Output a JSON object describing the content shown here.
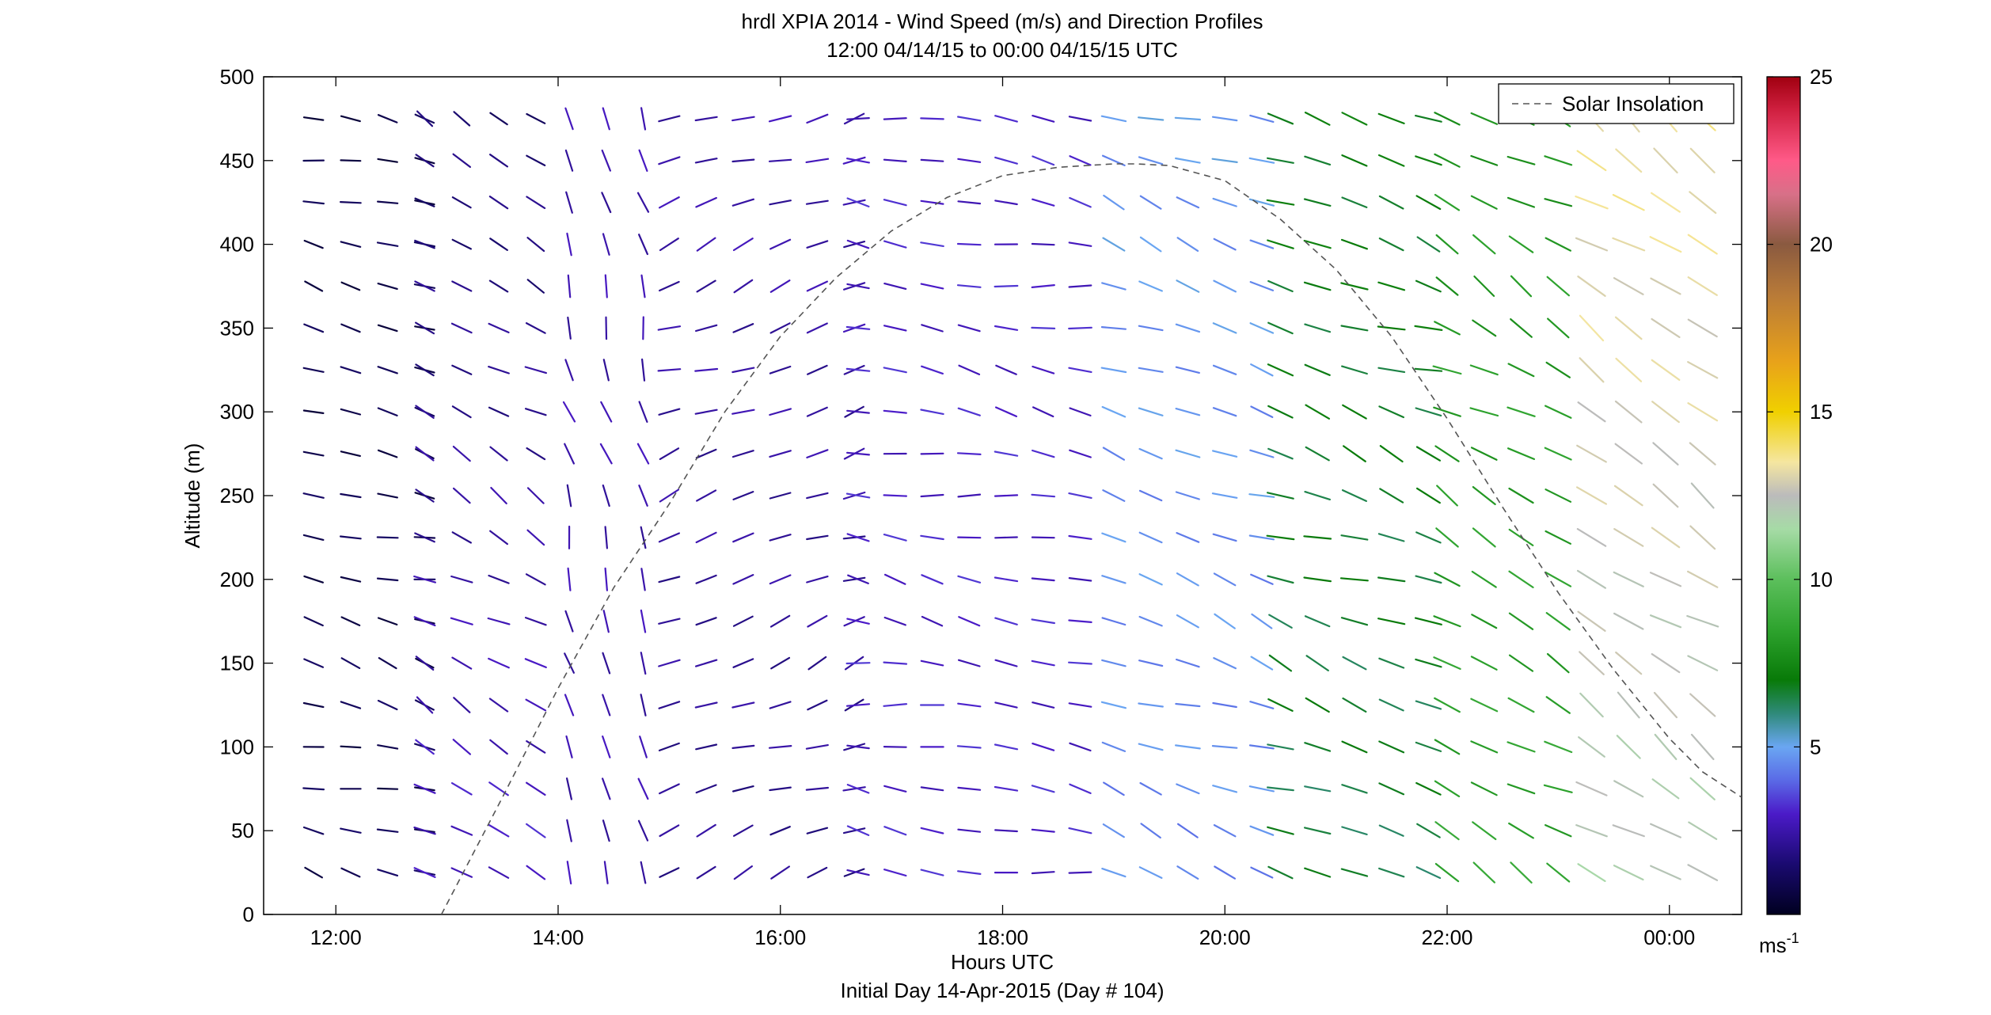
{
  "chart_data": {
    "type": "wind-barb-profile",
    "title": "hrdl XPIA 2014 - Wind Speed (m/s) and Direction Profiles",
    "subtitle": "12:00 04/14/15 to 00:00 04/15/15  UTC",
    "xlabel": "Hours UTC",
    "xlabel2": "Initial Day 14-Apr-2015 (Day # 104)",
    "ylabel": "Altitude (m)",
    "xlim": [
      11.35,
      24.65
    ],
    "ylim": [
      0,
      500
    ],
    "x_ticks": [
      {
        "value": 12,
        "label": "12:00"
      },
      {
        "value": 14,
        "label": "14:00"
      },
      {
        "value": 16,
        "label": "16:00"
      },
      {
        "value": 18,
        "label": "18:00"
      },
      {
        "value": 20,
        "label": "20:00"
      },
      {
        "value": 22,
        "label": "22:00"
      },
      {
        "value": 24,
        "label": "00:00"
      }
    ],
    "y_ticks": [
      0,
      50,
      100,
      150,
      200,
      250,
      300,
      350,
      400,
      450,
      500
    ],
    "legend": {
      "entries": [
        "Solar Insolation"
      ],
      "position": "top-right",
      "line_style": "dashed"
    },
    "colorbar": {
      "ticks": [
        5,
        10,
        15,
        20,
        25
      ],
      "range": [
        0,
        25
      ],
      "unit_label": "ms",
      "unit_exponent": "-1",
      "colormap": [
        {
          "v": 0,
          "c": "#000020"
        },
        {
          "v": 1.5,
          "c": "#1a0a70"
        },
        {
          "v": 3,
          "c": "#4b1ac8"
        },
        {
          "v": 4,
          "c": "#5a6ae6"
        },
        {
          "v": 5,
          "c": "#6aa6f2"
        },
        {
          "v": 6,
          "c": "#2f8a7a"
        },
        {
          "v": 7,
          "c": "#087a08"
        },
        {
          "v": 8.5,
          "c": "#2ea32e"
        },
        {
          "v": 10,
          "c": "#5cbf5c"
        },
        {
          "v": 11.5,
          "c": "#a6dba6"
        },
        {
          "v": 12.5,
          "c": "#bbbbbb"
        },
        {
          "v": 13.5,
          "c": "#f5e6a0"
        },
        {
          "v": 15,
          "c": "#f0d000"
        },
        {
          "v": 16.5,
          "c": "#e8a21a"
        },
        {
          "v": 18.5,
          "c": "#b87a38"
        },
        {
          "v": 20,
          "c": "#8a5a40"
        },
        {
          "v": 21.5,
          "c": "#d87088"
        },
        {
          "v": 22.5,
          "c": "#ff5a88"
        },
        {
          "v": 24,
          "c": "#d02040"
        },
        {
          "v": 25,
          "c": "#a00010"
        }
      ]
    },
    "solar_insolation": {
      "x": [
        12.95,
        13.5,
        14,
        14.5,
        15,
        15.5,
        16,
        16.5,
        17,
        17.5,
        18,
        18.5,
        19,
        19.2,
        19.5,
        20,
        20.5,
        21,
        21.5,
        22,
        22.5,
        23,
        23.5,
        24,
        24.3,
        24.65
      ],
      "y": [
        0,
        70,
        135,
        195,
        245,
        300,
        345,
        380,
        408,
        428,
        441,
        446,
        448,
        448,
        447,
        438,
        415,
        385,
        345,
        296,
        243,
        192,
        146,
        105,
        85,
        70
      ]
    },
    "profiles": {
      "heights": [
        25,
        50,
        75,
        100,
        125,
        150,
        175,
        200,
        225,
        250,
        275,
        300,
        325,
        350,
        375,
        400,
        425,
        450,
        475
      ],
      "regimes": [
        {
          "from": 11.8,
          "to": 12.8,
          "speed": 1.0,
          "direction": 285,
          "speed_top": 0.8
        },
        {
          "from": 12.8,
          "to": 14.1,
          "speed": 3.0,
          "direction": 300,
          "speed_top": 1.5
        },
        {
          "from": 14.1,
          "to": 15.0,
          "speed": 2.5,
          "direction": 345,
          "speed_top": 2.5
        },
        {
          "from": 15.0,
          "to": 16.7,
          "speed": 2.0,
          "direction": 250,
          "speed_top": 2.5
        },
        {
          "from": 16.7,
          "to": 19.0,
          "speed": 3.0,
          "direction": 280,
          "speed_top": 3.0
        },
        {
          "from": 19.0,
          "to": 20.5,
          "speed": 4.5,
          "direction": 290,
          "speed_top": 4.8
        },
        {
          "from": 20.5,
          "to": 22.0,
          "speed": 6.5,
          "direction": 290,
          "speed_top": 7.0
        },
        {
          "from": 22.0,
          "to": 23.3,
          "speed": 8.5,
          "direction": 300,
          "speed_top": 8.0
        },
        {
          "from": 23.3,
          "to": 24.3,
          "speed": 12.0,
          "direction": 305,
          "speed_top": 13.5
        }
      ],
      "time_step_hours": 0.333
    }
  }
}
